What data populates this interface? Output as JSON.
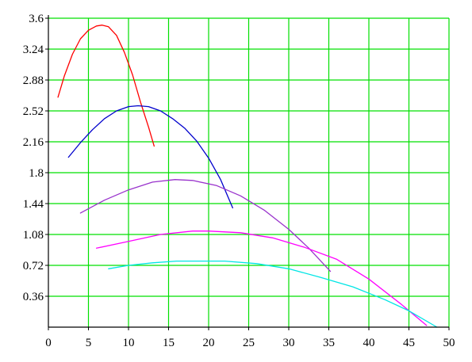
{
  "chart_data": {
    "type": "line",
    "title": "",
    "xlabel": "",
    "ylabel": "",
    "xlim": [
      0,
      50
    ],
    "ylim": [
      0,
      3.6
    ],
    "x_ticks": [
      0,
      5,
      10,
      15,
      20,
      25,
      30,
      35,
      40,
      45,
      50
    ],
    "x_tick_labels": [
      "0",
      "5",
      "10",
      "15",
      "20",
      "25",
      "30",
      "35",
      "40",
      "45",
      "50"
    ],
    "y_ticks": [
      0.36,
      0.72,
      1.08,
      1.44,
      1.8,
      2.16,
      2.52,
      2.88,
      3.24,
      3.6
    ],
    "y_tick_labels": [
      "0.36",
      "0.72",
      "1.08",
      "1.44",
      "1.8",
      "2.16",
      "2.52",
      "2.88",
      "3.24",
      "3.6"
    ],
    "grid": true,
    "grid_color": "#00e000",
    "axis_color": "#000000",
    "series": [
      {
        "color": "#ff0000",
        "x": [
          1.2,
          2,
          3,
          4,
          5,
          6,
          6.7,
          7.5,
          8.5,
          9.5,
          10.5,
          11.5,
          12.5,
          13.2
        ],
        "y": [
          2.68,
          2.93,
          3.18,
          3.36,
          3.46,
          3.51,
          3.52,
          3.5,
          3.4,
          3.2,
          2.94,
          2.62,
          2.33,
          2.11
        ]
      },
      {
        "color": "#0000cc",
        "x": [
          2.5,
          4,
          5.5,
          7,
          8.5,
          10,
          11.2,
          12.5,
          14,
          15.5,
          17,
          18.5,
          20,
          21.5,
          23
        ],
        "y": [
          1.98,
          2.15,
          2.3,
          2.43,
          2.52,
          2.57,
          2.58,
          2.57,
          2.52,
          2.43,
          2.32,
          2.17,
          1.97,
          1.72,
          1.39
        ]
      },
      {
        "color": "#9933cc",
        "x": [
          4,
          7,
          10,
          13,
          15.8,
          18,
          21,
          24,
          27,
          30,
          32.5,
          35.2
        ],
        "y": [
          1.33,
          1.48,
          1.6,
          1.69,
          1.72,
          1.71,
          1.65,
          1.53,
          1.36,
          1.14,
          0.92,
          0.65
        ]
      },
      {
        "color": "#ff00ff",
        "x": [
          6,
          10,
          14,
          18,
          20,
          24,
          28,
          32,
          36,
          40,
          44,
          47.2
        ],
        "y": [
          0.92,
          1.0,
          1.08,
          1.12,
          1.12,
          1.1,
          1.04,
          0.93,
          0.79,
          0.56,
          0.27,
          0.02
        ]
      },
      {
        "color": "#00e5e5",
        "x": [
          7.5,
          10,
          13,
          16,
          19,
          22,
          26,
          30,
          34,
          38,
          42,
          45,
          48.5
        ],
        "y": [
          0.68,
          0.72,
          0.75,
          0.77,
          0.77,
          0.77,
          0.74,
          0.68,
          0.58,
          0.47,
          0.32,
          0.19,
          0.0
        ]
      }
    ]
  }
}
